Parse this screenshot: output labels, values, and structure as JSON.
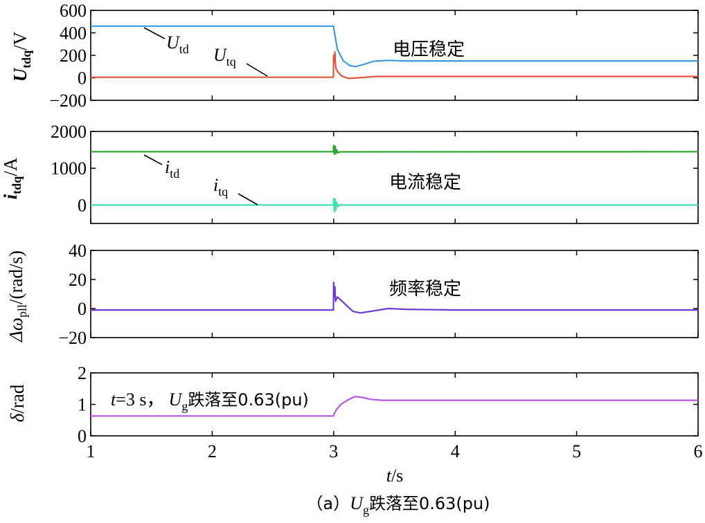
{
  "chart_data": {
    "type": "line",
    "caption": {
      "prefix": "（a）",
      "var": "U",
      "sub": "g",
      "rest": "跌落至0.63(pu)"
    },
    "x": {
      "label_var": "t",
      "label_unit": "/s",
      "range": [
        1,
        6
      ],
      "ticks": [
        1,
        2,
        3,
        4,
        5,
        6
      ],
      "tick_labels": [
        "1",
        "2",
        "3",
        "4",
        "5",
        "6"
      ]
    },
    "panels": [
      {
        "id": "voltage",
        "ylabel": {
          "var": "U",
          "sub": "tdq",
          "unit": "/V",
          "bold": true
        },
        "ylim": [
          -200,
          600
        ],
        "yticks": [
          600,
          400,
          200,
          0,
          -200
        ],
        "ytick_labels": [
          "600",
          "400",
          "200",
          "0",
          "−200"
        ],
        "series": [
          {
            "name": "U_td",
            "color": "#3a9ae8",
            "points": [
              [
                1,
                460
              ],
              [
                2.998,
                460
              ],
              [
                3.0,
                445
              ],
              [
                3.03,
                255
              ],
              [
                3.08,
                150
              ],
              [
                3.13,
                110
              ],
              [
                3.18,
                100
              ],
              [
                3.25,
                120
              ],
              [
                3.33,
                148
              ],
              [
                3.45,
                155
              ],
              [
                3.6,
                150
              ],
              [
                4,
                150
              ],
              [
                6,
                150
              ]
            ]
          },
          {
            "name": "U_tq",
            "color": "#e2553c",
            "points": [
              [
                1,
                5
              ],
              [
                2.998,
                5
              ],
              [
                3.0,
                200
              ],
              [
                3.005,
                140
              ],
              [
                3.01,
                230
              ],
              [
                3.015,
                120
              ],
              [
                3.02,
                80
              ],
              [
                3.03,
                60
              ],
              [
                3.06,
                20
              ],
              [
                3.12,
                -5
              ],
              [
                3.2,
                0
              ],
              [
                3.35,
                12
              ],
              [
                3.6,
                12
              ],
              [
                6,
                12
              ]
            ]
          }
        ],
        "labels": [
          {
            "var": "U",
            "sub": "td"
          },
          {
            "var": "U",
            "sub": "tq"
          }
        ],
        "annotation": "电压稳定"
      },
      {
        "id": "current",
        "ylabel": {
          "var": "i",
          "sub": "tdq",
          "unit": "/A",
          "bold": true
        },
        "ylim": [
          -500,
          2000
        ],
        "yticks": [
          2000,
          1000,
          0
        ],
        "ytick_labels": [
          "2000",
          "1000",
          "0"
        ],
        "series": [
          {
            "name": "i_td",
            "color": "#2aa62a",
            "points": [
              [
                1,
                1450
              ],
              [
                2.998,
                1450
              ],
              [
                3.0,
                1620
              ],
              [
                3.006,
                1380
              ],
              [
                3.012,
                1600
              ],
              [
                3.018,
                1400
              ],
              [
                3.025,
                1500
              ],
              [
                3.035,
                1420
              ],
              [
                3.05,
                1445
              ],
              [
                6,
                1450
              ]
            ]
          },
          {
            "name": "i_tq",
            "color": "#40e0a8",
            "points": [
              [
                1,
                0
              ],
              [
                2.998,
                0
              ],
              [
                3.0,
                180
              ],
              [
                3.006,
                -180
              ],
              [
                3.012,
                160
              ],
              [
                3.018,
                -140
              ],
              [
                3.025,
                80
              ],
              [
                3.035,
                -40
              ],
              [
                3.05,
                10
              ],
              [
                3.08,
                0
              ],
              [
                6,
                0
              ]
            ]
          }
        ],
        "labels": [
          {
            "var": "i",
            "sub": "td"
          },
          {
            "var": "i",
            "sub": "tq"
          }
        ],
        "annotation": "电流稳定"
      },
      {
        "id": "frequency",
        "ylabel": {
          "var": "Δω",
          "sub": "pll",
          "unit": "/(rad/s)",
          "bold": false
        },
        "ylim": [
          -20,
          40
        ],
        "yticks": [
          40,
          20,
          0,
          -20
        ],
        "ytick_labels": [
          "40",
          "20",
          "0",
          "−20"
        ],
        "series": [
          {
            "name": "Δω_pll",
            "color": "#6a3ad8",
            "points": [
              [
                1,
                -1
              ],
              [
                2.998,
                -1
              ],
              [
                3.0,
                18
              ],
              [
                3.005,
                8
              ],
              [
                3.01,
                15
              ],
              [
                3.015,
                5
              ],
              [
                3.03,
                8
              ],
              [
                3.07,
                5
              ],
              [
                3.12,
                1
              ],
              [
                3.16,
                -2
              ],
              [
                3.22,
                -3
              ],
              [
                3.3,
                -2
              ],
              [
                3.45,
                0
              ],
              [
                3.6,
                -0.5
              ],
              [
                4,
                -1
              ],
              [
                6,
                -1
              ]
            ]
          }
        ],
        "annotation": "频率稳定"
      },
      {
        "id": "angle",
        "ylabel": {
          "var": "δ",
          "sub": "",
          "unit": "/rad",
          "bold": false
        },
        "ylim": [
          0,
          2
        ],
        "yticks": [
          2,
          1,
          0
        ],
        "ytick_labels": [
          "2",
          "1",
          "0"
        ],
        "series": [
          {
            "name": "δ",
            "color": "#b557e6",
            "points": [
              [
                1,
                0.63
              ],
              [
                2.998,
                0.63
              ],
              [
                3.0,
                0.66
              ],
              [
                3.02,
                0.82
              ],
              [
                3.06,
                1.0
              ],
              [
                3.12,
                1.15
              ],
              [
                3.18,
                1.25
              ],
              [
                3.24,
                1.22
              ],
              [
                3.3,
                1.16
              ],
              [
                3.4,
                1.13
              ],
              [
                3.6,
                1.13
              ],
              [
                6,
                1.13
              ]
            ]
          }
        ],
        "annotation": {
          "var": "t",
          "eq": "=3 s，",
          "var2": "U",
          "sub2": "g",
          "rest": "跌落至0.63(pu)"
        }
      }
    ]
  }
}
